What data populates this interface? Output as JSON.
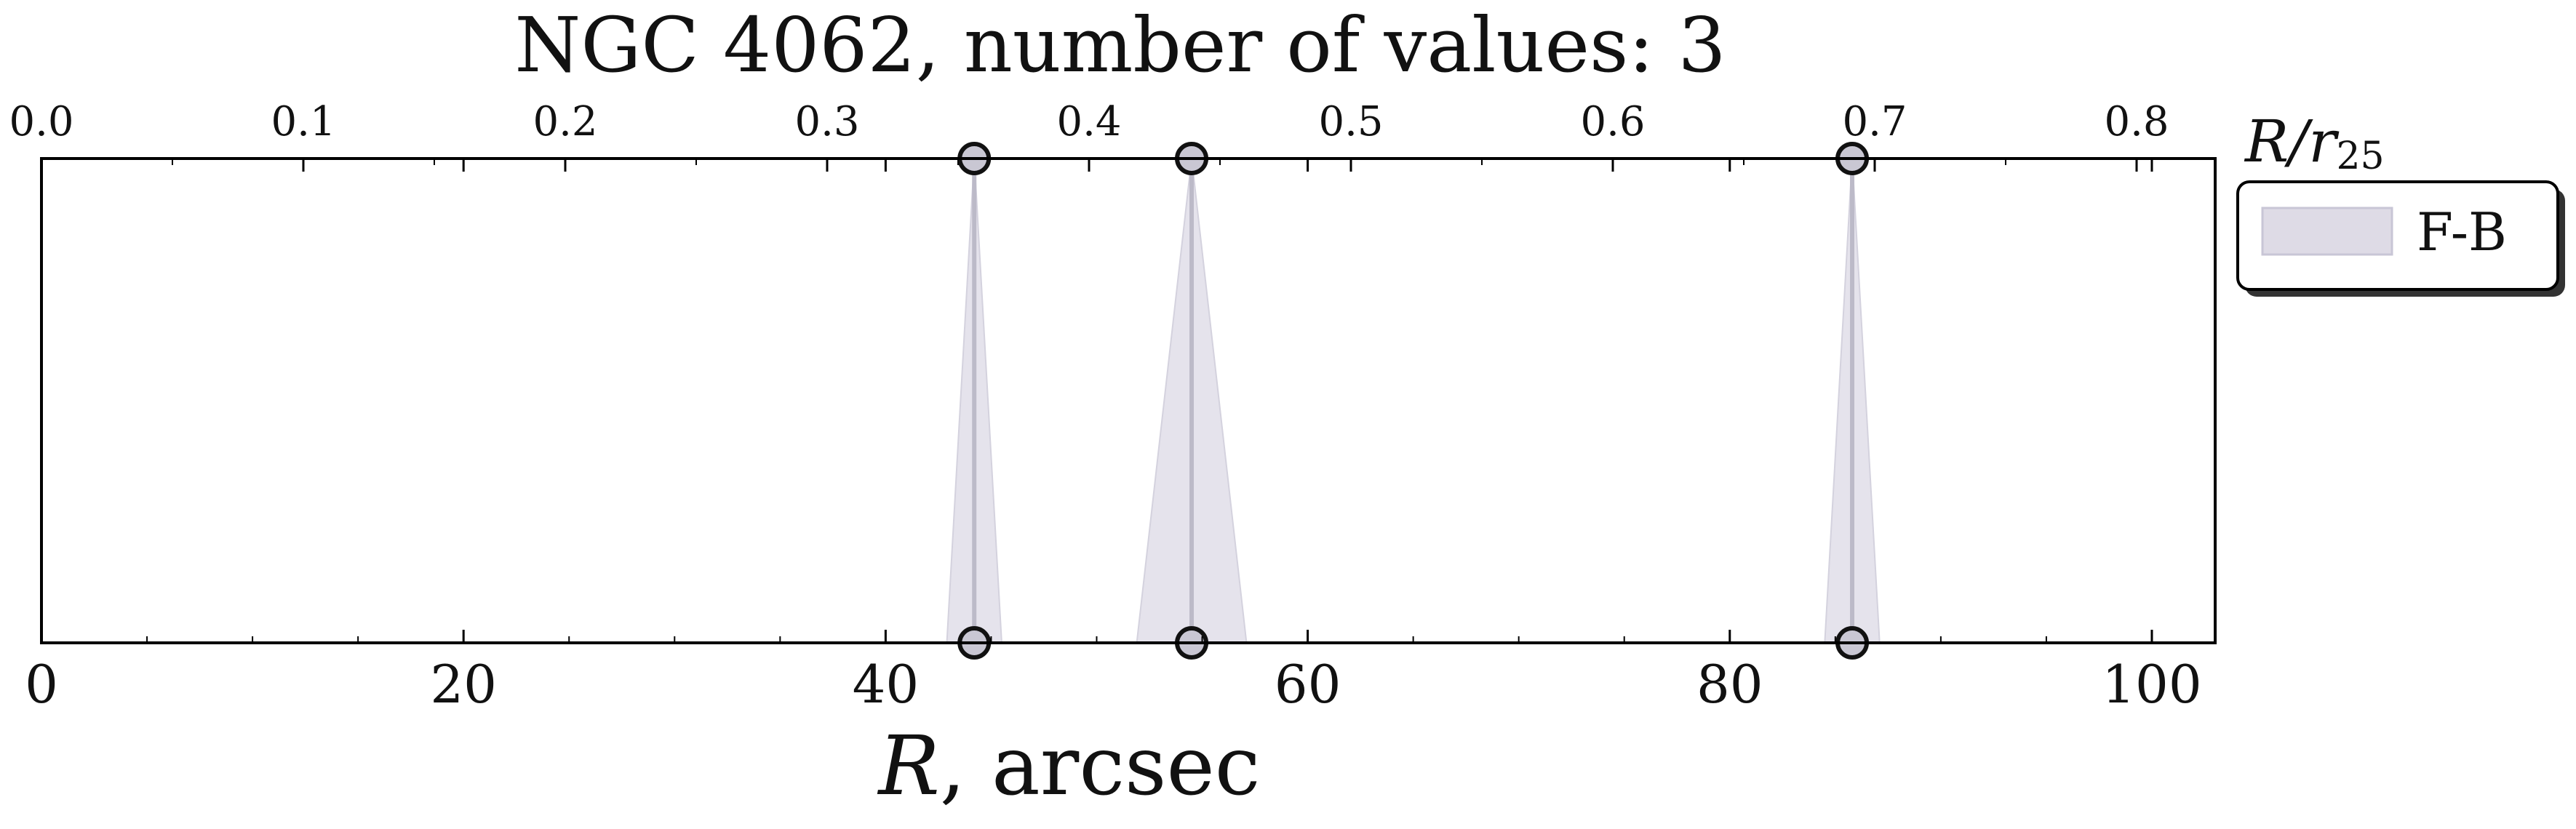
{
  "chart_data": {
    "type": "scatter",
    "title": "NGC 4062, number of values: 3",
    "xlabel_var": "R",
    "xlabel_unit": ", arcsec",
    "top_axis_label_var": "R/r",
    "top_axis_label_sub": "25",
    "xlim": [
      0,
      103
    ],
    "top_xlim": [
      0,
      0.83
    ],
    "x_ticks": [
      "0",
      "20",
      "40",
      "60",
      "80",
      "100"
    ],
    "top_ticks": [
      "0.0",
      "0.1",
      "0.2",
      "0.3",
      "0.4",
      "0.5",
      "0.6",
      "0.7",
      "0.8"
    ],
    "grid": false,
    "legend_position": "outside-right",
    "series": [
      {
        "name": "F-B",
        "color": "#c8c6d6",
        "points": [
          {
            "x": 44.2,
            "spread": 1.3
          },
          {
            "x": 54.5,
            "spread": 2.6
          },
          {
            "x": 85.8,
            "spread": 1.3
          }
        ]
      }
    ]
  }
}
